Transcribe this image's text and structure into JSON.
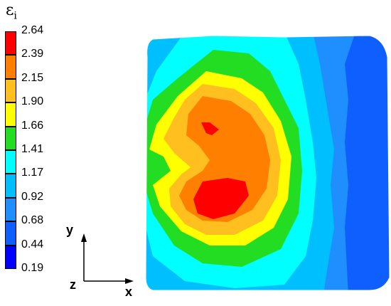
{
  "legend": {
    "symbol": "ε",
    "subscript": "i",
    "levels": [
      "2.64",
      "2.39",
      "2.15",
      "1.90",
      "1.66",
      "1.41",
      "1.17",
      "0.92",
      "0.68",
      "0.44",
      "0.19"
    ],
    "colors": [
      "#ff0000",
      "#ff7f00",
      "#ffbf1f",
      "#ffff00",
      "#22dd22",
      "#00ffff",
      "#00bfff",
      "#1f8fff",
      "#0f5fff",
      "#0000ff"
    ]
  },
  "axes": {
    "x": "x",
    "y": "y",
    "z": "z"
  }
}
